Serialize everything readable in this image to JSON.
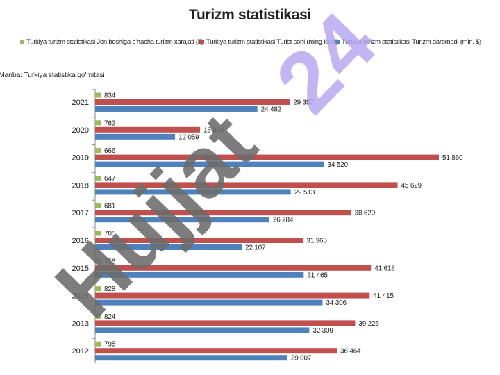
{
  "colors": {
    "spend": "#9bbb59",
    "tourists": "#c0504d",
    "revenue": "#4f81bd",
    "watermark": "#6b6b6b",
    "watermark_24": "#b7a8f0"
  },
  "watermark": {
    "text_main": "Hujjat",
    "text_num": "24"
  },
  "chart_data": {
    "type": "bar",
    "orientation": "horizontal",
    "title": "Turizm statistikasi",
    "source": "Manba: Turkiya statistika qo'mitasi",
    "categories": [
      "2021",
      "2020",
      "2019",
      "2018",
      "2017",
      "2016",
      "2015",
      "2014",
      "2013",
      "2012"
    ],
    "series": [
      {
        "name": "Turkiya turizm statistikasi Jon boshiga o'rtacha turizm xarajati ($)",
        "color": "#9bbb59",
        "values": [
          834,
          762,
          666,
          647,
          681,
          705,
          756,
          828,
          824,
          795
        ],
        "labels": [
          "834",
          "762",
          "666",
          "647",
          "681",
          "705",
          "756",
          "828",
          "824",
          "795"
        ]
      },
      {
        "name": "Turkiya turizm statistikasi Turist soni (ming kishi)",
        "color": "#c0504d",
        "values": [
          29357,
          15826,
          51860,
          45629,
          38620,
          31365,
          41618,
          41415,
          39226,
          36464
        ],
        "labels": [
          "29 357",
          "15 826",
          "51 860",
          "45 629",
          "38 620",
          "31 365",
          "41 618",
          "41 415",
          "39 226",
          "36 464"
        ]
      },
      {
        "name": "Turkiya turizm statistikasi Turizm daromadi (mln. $)",
        "color": "#4f81bd",
        "values": [
          24482,
          12059,
          34520,
          29513,
          26284,
          22107,
          31465,
          34306,
          32309,
          29007
        ],
        "labels": [
          "24 482",
          "12 059",
          "34 520",
          "29 513",
          "26 284",
          "22 107",
          "31 465",
          "34 306",
          "32 309",
          "29 007"
        ]
      }
    ],
    "xlim": [
      0,
      51860
    ],
    "grid": false,
    "legend_position": "top"
  }
}
